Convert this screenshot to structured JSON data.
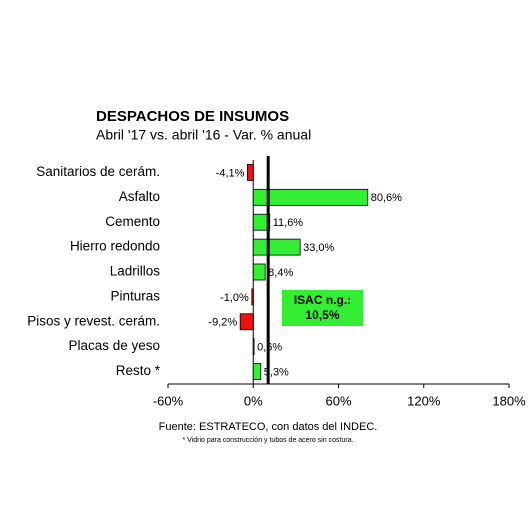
{
  "chart_data": {
    "type": "hbar",
    "title": "DESPACHOS DE INSUMOS",
    "subtitle": "Abril '17 vs. abril '16 - Var. % anual",
    "categories": [
      "Sanitarios de cerám.",
      "Asfalto",
      "Cemento",
      "Hierro redondo",
      "Ladrillos",
      "Pinturas",
      "Pisos y revest. cerám.",
      "Placas de yeso",
      "Resto *"
    ],
    "values": [
      -4.1,
      80.6,
      11.6,
      33.0,
      8.4,
      -1.0,
      -9.2,
      0.6,
      5.3
    ],
    "value_labels": [
      "-4,1%",
      "80,6%",
      "11,6%",
      "33,0%",
      "8,4%",
      "-1,0%",
      "-9,2%",
      "0,6%",
      "5,3%"
    ],
    "positive_color": "#33ee33",
    "negative_color": "#ee1111",
    "xlim": [
      -60,
      180
    ],
    "xticks": [
      {
        "value": -60,
        "label": "-60%"
      },
      {
        "value": 0,
        "label": "0%"
      },
      {
        "value": 60,
        "label": "60%"
      },
      {
        "value": 120,
        "label": "120%"
      },
      {
        "value": 180,
        "label": "180%"
      }
    ],
    "reference": {
      "value": 10.5,
      "name": "ISAC n.g.:",
      "value_label": "10,5%"
    },
    "source": "Fuente: ESTRATECO, con datos del INDEC.",
    "footnote": "* Vidrio para construcción y tubos de acero sin costura."
  }
}
